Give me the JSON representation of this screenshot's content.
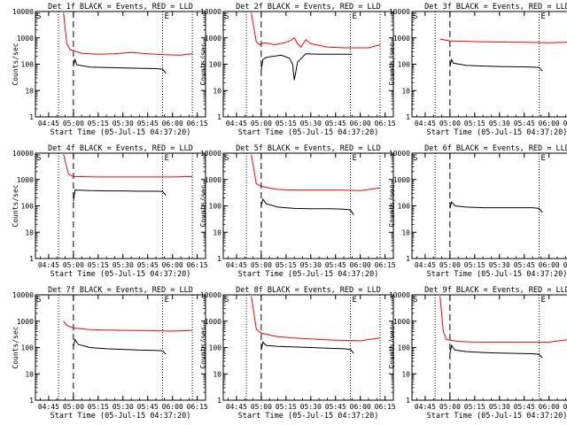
{
  "figure": {
    "ylabel": "Counts/sec",
    "xlabel": "Start Time (05-Jul-15 04:37:20)",
    "x_ticks": [
      "04:45",
      "05:00",
      "05:15",
      "05:30",
      "05:45",
      "06:00",
      "06:15"
    ],
    "y_ticks": [
      "1",
      "10",
      "100",
      "1000",
      "10000"
    ],
    "colors": {
      "events": "#000000",
      "lld": "#ff0000"
    }
  },
  "chart_data": [
    {
      "type": "line",
      "title": "Det 1f BLACK = Events, RED = LLD",
      "corner_left": "S",
      "corner_right": "E",
      "ylim": [
        1,
        10000
      ],
      "y_scale": "log",
      "xlim": [
        "04:37",
        "06:20"
      ],
      "markers": {
        "dotted": [
          "04:51",
          "05:54",
          "06:12"
        ],
        "dashed": [
          "05:00"
        ]
      },
      "series": [
        {
          "color": "red",
          "points": [
            [
              "04:54",
              9000
            ],
            [
              "04:56",
              600
            ],
            [
              "04:58",
              350
            ],
            [
              "05:00",
              330
            ],
            [
              "05:05",
              260
            ],
            [
              "05:15",
              240
            ],
            [
              "05:25",
              250
            ],
            [
              "05:35",
              280
            ],
            [
              "05:45",
              250
            ],
            [
              "05:55",
              230
            ],
            [
              "06:05",
              220
            ],
            [
              "06:12",
              250
            ]
          ]
        },
        {
          "color": "black",
          "points": [
            [
              "05:00",
              90
            ],
            [
              "05:01",
              150
            ],
            [
              "05:02",
              95
            ],
            [
              "05:10",
              78
            ],
            [
              "05:20",
              75
            ],
            [
              "05:30",
              72
            ],
            [
              "05:40",
              70
            ],
            [
              "05:50",
              68
            ],
            [
              "05:54",
              65
            ],
            [
              "05:56",
              45
            ]
          ]
        }
      ]
    },
    {
      "type": "line",
      "title": "Det 2f BLACK = Events, RED = LLD",
      "corner_left": "S",
      "corner_right": "E",
      "ylim": [
        1,
        10000
      ],
      "y_scale": "log",
      "xlim": [
        "04:37",
        "06:20"
      ],
      "markers": {
        "dotted": [
          "04:51",
          "05:54",
          "06:12"
        ],
        "dashed": [
          "05:00"
        ]
      },
      "series": [
        {
          "color": "red",
          "points": [
            [
              "04:54",
              9000
            ],
            [
              "04:57",
              700
            ],
            [
              "04:59",
              550
            ],
            [
              "05:02",
              650
            ],
            [
              "05:08",
              550
            ],
            [
              "05:14",
              650
            ],
            [
              "05:18",
              800
            ],
            [
              "05:20",
              1000
            ],
            [
              "05:22",
              600
            ],
            [
              "05:24",
              450
            ],
            [
              "05:27",
              850
            ],
            [
              "05:30",
              600
            ],
            [
              "05:40",
              450
            ],
            [
              "05:50",
              420
            ],
            [
              "06:05",
              420
            ],
            [
              "06:12",
              550
            ]
          ]
        },
        {
          "color": "black",
          "points": [
            [
              "05:00",
              60
            ],
            [
              "05:01",
              150
            ],
            [
              "05:03",
              180
            ],
            [
              "05:12",
              220
            ],
            [
              "05:17",
              170
            ],
            [
              "05:19",
              100
            ],
            [
              "05:20",
              25
            ],
            [
              "05:22",
              120
            ],
            [
              "05:27",
              250
            ],
            [
              "05:35",
              240
            ],
            [
              "05:45",
              240
            ],
            [
              "05:55",
              240
            ]
          ]
        }
      ]
    },
    {
      "type": "line",
      "title": "Det 3f BLACK = Events, RED = LLD",
      "corner_left": "S",
      "corner_right": "E",
      "ylim": [
        1,
        10000
      ],
      "y_scale": "log",
      "xlim": [
        "04:37",
        "06:20"
      ],
      "markers": {
        "dotted": [
          "04:51",
          "05:54",
          "06:12"
        ],
        "dashed": [
          "05:00"
        ]
      },
      "series": [
        {
          "color": "red",
          "points": [
            [
              "04:54",
              900
            ],
            [
              "04:56",
              850
            ],
            [
              "05:00",
              760
            ],
            [
              "05:15",
              720
            ],
            [
              "05:30",
              690
            ],
            [
              "05:45",
              680
            ],
            [
              "06:00",
              650
            ],
            [
              "06:12",
              680
            ]
          ]
        },
        {
          "color": "black",
          "points": [
            [
              "05:00",
              80
            ],
            [
              "05:01",
              150
            ],
            [
              "05:02",
              110
            ],
            [
              "05:10",
              90
            ],
            [
              "05:20",
              85
            ],
            [
              "05:30",
              82
            ],
            [
              "05:40",
              80
            ],
            [
              "05:50",
              78
            ],
            [
              "05:54",
              75
            ],
            [
              "05:56",
              55
            ]
          ]
        }
      ]
    },
    {
      "type": "line",
      "title": "Det 4f BLACK = Events, RED = LLD",
      "corner_left": "S",
      "corner_right": "E",
      "ylim": [
        1,
        10000
      ],
      "y_scale": "log",
      "xlim": [
        "04:37",
        "06:20"
      ],
      "markers": {
        "dotted": [
          "04:51",
          "05:54",
          "06:12"
        ],
        "dashed": [
          "05:00"
        ]
      },
      "series": [
        {
          "color": "red",
          "points": [
            [
              "04:54",
              9000
            ],
            [
              "04:57",
              1600
            ],
            [
              "05:00",
              1300
            ],
            [
              "05:15",
              1250
            ],
            [
              "05:30",
              1250
            ],
            [
              "05:45",
              1250
            ],
            [
              "06:00",
              1250
            ],
            [
              "06:12",
              1300
            ]
          ]
        },
        {
          "color": "black",
          "points": [
            [
              "05:00",
              150
            ],
            [
              "05:01",
              400
            ],
            [
              "05:10",
              380
            ],
            [
              "05:20",
              370
            ],
            [
              "05:30",
              370
            ],
            [
              "05:40",
              360
            ],
            [
              "05:50",
              360
            ],
            [
              "05:54",
              350
            ],
            [
              "05:56",
              250
            ]
          ]
        }
      ]
    },
    {
      "type": "line",
      "title": "Det 5f BLACK = Events, RED = LLD",
      "corner_left": "S",
      "corner_right": "E",
      "ylim": [
        1,
        10000
      ],
      "y_scale": "log",
      "xlim": [
        "04:37",
        "06:20"
      ],
      "markers": {
        "dotted": [
          "04:51",
          "05:54",
          "06:12"
        ],
        "dashed": [
          "05:00"
        ]
      },
      "series": [
        {
          "color": "red",
          "points": [
            [
              "04:54",
              9000
            ],
            [
              "04:57",
              700
            ],
            [
              "05:00",
              550
            ],
            [
              "05:10",
              420
            ],
            [
              "05:20",
              400
            ],
            [
              "05:30",
              400
            ],
            [
              "05:45",
              400
            ],
            [
              "06:00",
              380
            ],
            [
              "06:12",
              480
            ]
          ]
        },
        {
          "color": "black",
          "points": [
            [
              "05:00",
              100
            ],
            [
              "05:01",
              180
            ],
            [
              "05:03",
              120
            ],
            [
              "05:10",
              90
            ],
            [
              "05:20",
              80
            ],
            [
              "05:30",
              78
            ],
            [
              "05:40",
              78
            ],
            [
              "05:50",
              75
            ],
            [
              "05:54",
              70
            ],
            [
              "05:56",
              45
            ]
          ]
        }
      ]
    },
    {
      "type": "line",
      "title": "Det 6f BLACK = Events, RED = LLD",
      "corner_left": "S",
      "corner_right": "E",
      "ylim": [
        1,
        10000
      ],
      "y_scale": "log",
      "xlim": [
        "04:37",
        "06:20"
      ],
      "markers": {
        "dotted": [
          "04:51",
          "05:54",
          "06:12"
        ],
        "dashed": [
          "05:00"
        ]
      },
      "series": [
        {
          "color": "black",
          "points": [
            [
              "05:00",
              80
            ],
            [
              "05:01",
              140
            ],
            [
              "05:03",
              100
            ],
            [
              "05:10",
              90
            ],
            [
              "05:20",
              85
            ],
            [
              "05:30",
              85
            ],
            [
              "05:40",
              85
            ],
            [
              "05:50",
              85
            ],
            [
              "05:54",
              80
            ],
            [
              "05:56",
              55
            ]
          ]
        }
      ]
    },
    {
      "type": "line",
      "title": "Det 7f BLACK = Events, RED = LLD",
      "corner_left": "S",
      "corner_right": "E",
      "ylim": [
        1,
        10000
      ],
      "y_scale": "log",
      "xlim": [
        "04:37",
        "06:20"
      ],
      "markers": {
        "dotted": [
          "04:51",
          "05:54",
          "06:12"
        ],
        "dashed": [
          "05:00"
        ]
      },
      "series": [
        {
          "color": "red",
          "points": [
            [
              "04:54",
              1000
            ],
            [
              "04:56",
              700
            ],
            [
              "05:00",
              550
            ],
            [
              "05:10",
              480
            ],
            [
              "05:20",
              460
            ],
            [
              "05:30",
              450
            ],
            [
              "05:45",
              440
            ],
            [
              "06:00",
              420
            ],
            [
              "06:12",
              450
            ]
          ]
        },
        {
          "color": "black",
          "points": [
            [
              "05:00",
              110
            ],
            [
              "05:01",
              200
            ],
            [
              "05:03",
              130
            ],
            [
              "05:10",
              100
            ],
            [
              "05:20",
              90
            ],
            [
              "05:30",
              85
            ],
            [
              "05:40",
              80
            ],
            [
              "05:50",
              78
            ],
            [
              "05:54",
              75
            ],
            [
              "05:56",
              55
            ]
          ]
        }
      ]
    },
    {
      "type": "line",
      "title": "Det 8f BLACK = Events, RED = LLD",
      "corner_left": "S",
      "corner_right": "E",
      "ylim": [
        1,
        10000
      ],
      "y_scale": "log",
      "xlim": [
        "04:37",
        "06:20"
      ],
      "markers": {
        "dotted": [
          "04:51",
          "05:54",
          "06:12"
        ],
        "dashed": [
          "05:00"
        ]
      },
      "series": [
        {
          "color": "red",
          "points": [
            [
              "04:54",
              9000
            ],
            [
              "04:57",
              500
            ],
            [
              "05:00",
              350
            ],
            [
              "05:10",
              260
            ],
            [
              "05:20",
              230
            ],
            [
              "05:30",
              210
            ],
            [
              "05:45",
              190
            ],
            [
              "06:00",
              180
            ],
            [
              "06:12",
              230
            ]
          ]
        },
        {
          "color": "black",
          "points": [
            [
              "05:00",
              80
            ],
            [
              "05:01",
              160
            ],
            [
              "05:03",
              120
            ],
            [
              "05:10",
              110
            ],
            [
              "05:20",
              105
            ],
            [
              "05:30",
              100
            ],
            [
              "05:40",
              95
            ],
            [
              "05:50",
              90
            ],
            [
              "05:54",
              85
            ],
            [
              "05:56",
              60
            ]
          ]
        }
      ]
    },
    {
      "type": "line",
      "title": "Det 9f BLACK = Events, RED = LLD",
      "corner_left": "S",
      "corner_right": "E",
      "ylim": [
        1,
        10000
      ],
      "y_scale": "log",
      "xlim": [
        "04:37",
        "06:20"
      ],
      "markers": {
        "dotted": [
          "04:51",
          "05:54",
          "06:12"
        ],
        "dashed": [
          "05:00"
        ]
      },
      "series": [
        {
          "color": "red",
          "points": [
            [
              "04:54",
              9000
            ],
            [
              "04:56",
              400
            ],
            [
              "04:58",
              200
            ],
            [
              "05:05",
              170
            ],
            [
              "05:15",
              160
            ],
            [
              "05:30",
              160
            ],
            [
              "05:45",
              160
            ],
            [
              "06:00",
              160
            ],
            [
              "06:12",
              200
            ]
          ]
        },
        {
          "color": "black",
          "points": [
            [
              "05:00",
              60
            ],
            [
              "05:01",
              120
            ],
            [
              "05:03",
              80
            ],
            [
              "05:10",
              70
            ],
            [
              "05:20",
              65
            ],
            [
              "05:30",
              62
            ],
            [
              "05:40",
              60
            ],
            [
              "05:50",
              58
            ],
            [
              "05:54",
              55
            ],
            [
              "05:56",
              40
            ]
          ]
        }
      ]
    }
  ]
}
